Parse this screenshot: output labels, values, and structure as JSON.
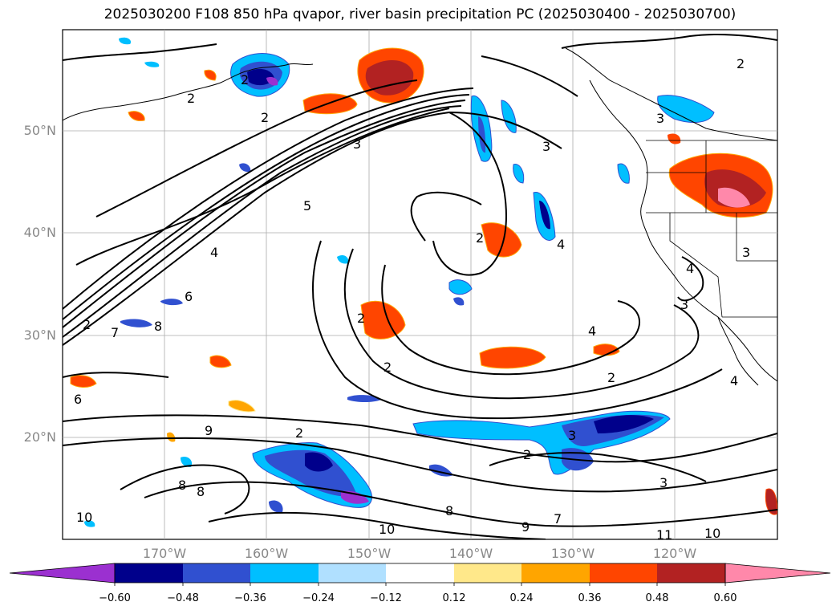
{
  "title": "2025030200 F108 850 hPa qvapor, river basin precipitation PC (2025030400 - 2025030700)",
  "lat_labels": [
    "50°N",
    "40°N",
    "30°N",
    "20°N"
  ],
  "lon_labels": [
    "170°W",
    "160°W",
    "150°W",
    "140°W",
    "130°W",
    "120°W"
  ],
  "contour_labels": [
    "2",
    "3",
    "4",
    "5",
    "6",
    "7",
    "8",
    "9",
    "10",
    "11"
  ],
  "colorbar": {
    "ticks": [
      "−0.60",
      "−0.48",
      "−0.36",
      "−0.24",
      "−0.12",
      "0.12",
      "0.24",
      "0.36",
      "0.48",
      "0.60"
    ],
    "colors": [
      "#9b30d0",
      "#00008b",
      "#3050d0",
      "#00bfff",
      "#b0e0ff",
      "#ffffff",
      "#ffe88a",
      "#ffa500",
      "#ff4500",
      "#b22222",
      "#ff88aa"
    ]
  }
}
